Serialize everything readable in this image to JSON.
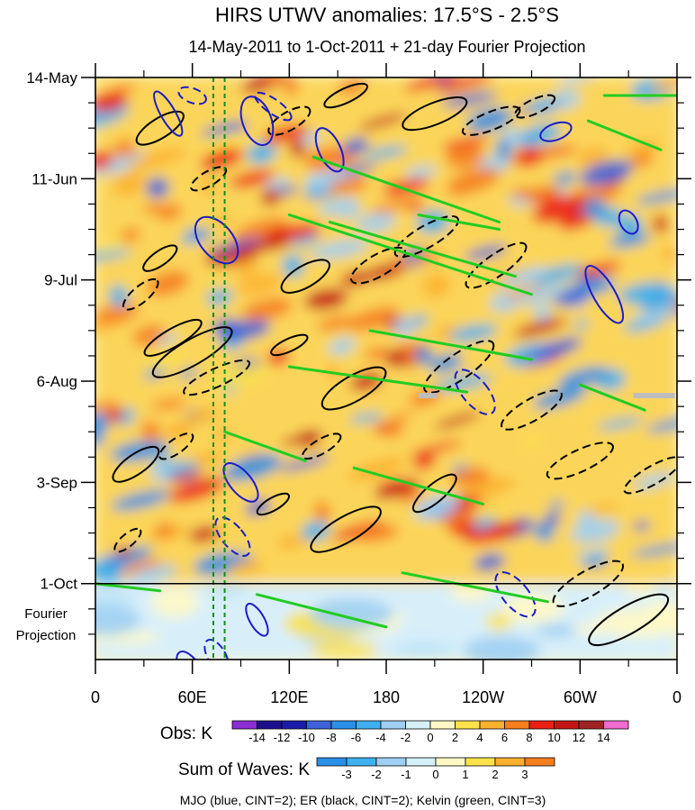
{
  "chart_data": {
    "type": "heatmap",
    "title": "HIRS UTWV anomalies: 17.5°S - 2.5°S",
    "subtitle": "14-May-2011 to 1-Oct-2011 + 21-day Fourier Projection",
    "y_tick_labels": [
      "14-May",
      "11-Jun",
      "9-Jul",
      "6-Aug",
      "3-Sep",
      "1-Oct"
    ],
    "y_extra_label_line1": "Fourier",
    "y_extra_label_line2": "Projection",
    "x_tick_labels": [
      "0",
      "60E",
      "120E",
      "180",
      "120W",
      "60W",
      "0"
    ],
    "x_range_deg": [
      0,
      360
    ],
    "y_range_days": [
      0,
      161
    ],
    "obs_label": "Obs: K",
    "obs_levels": [
      "-14",
      "-12",
      "-10",
      "-8",
      "-6",
      "-4",
      "-2",
      "0",
      "2",
      "4",
      "6",
      "8",
      "10",
      "12",
      "14"
    ],
    "obs_colors": [
      "#8b2ed6",
      "#1c0f8c",
      "#1a1aa8",
      "#3b62d9",
      "#2a8fe6",
      "#3fb0f0",
      "#9fcff2",
      "#d6f0fa",
      "#fff8c4",
      "#fde24a",
      "#fbb12e",
      "#f57e1f",
      "#ec1f16",
      "#c41515",
      "#9e2424",
      "#f26ccf"
    ],
    "waves_label": "Sum of Waves: K",
    "waves_levels": [
      "-3",
      "-2",
      "-1",
      "0",
      "1",
      "2",
      "3"
    ],
    "waves_colors": [
      "#2a8fe6",
      "#3fb0f0",
      "#9fcff2",
      "#d6f0fa",
      "#fff8c4",
      "#fde24a",
      "#fbb12e",
      "#f57e1f"
    ],
    "footer": "MJO (blue, CINT=2); ER (black, CINT=2); Kelvin (green, CINT=3)",
    "series": [
      {
        "name": "MJO",
        "color": "#1c1cc4",
        "cint": 2
      },
      {
        "name": "ER",
        "color": "#000000",
        "cint": 2
      },
      {
        "name": "Kelvin",
        "color": "#22cc22",
        "cint": 3
      }
    ],
    "reference_longitudes_deg": [
      73,
      80
    ],
    "projection_start_day": 140
  }
}
